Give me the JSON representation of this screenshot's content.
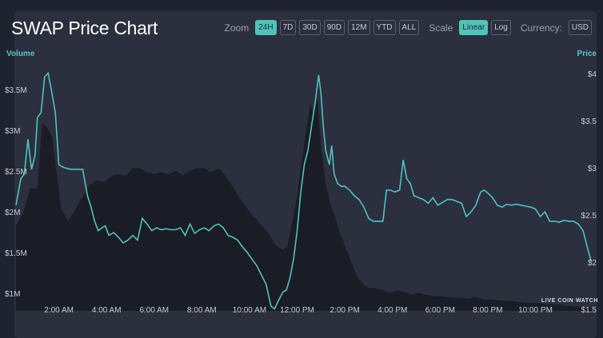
{
  "title": "SWAP Price Chart",
  "controls": {
    "zoom_label": "Zoom",
    "zoom_options": [
      "24H",
      "7D",
      "30D",
      "90D",
      "12M",
      "YTD",
      "ALL"
    ],
    "zoom_selected": "24H",
    "scale_label": "Scale",
    "scale_options": [
      "Linear",
      "Log"
    ],
    "scale_selected": "Linear",
    "currency_label": "Currency:",
    "currency_value": "USD"
  },
  "watermark": "LIVE COIN WATCH",
  "colors": {
    "price_line": "#4fc4b9",
    "volume_area": "#1a1c26",
    "panel": "#2b2f3e",
    "accent": "#4fc4b9"
  },
  "chart_data": {
    "type": "line",
    "title": "SWAP Price Chart",
    "x_unit": "hours",
    "x_ticks": [
      {
        "t": 2,
        "label": "2:00 AM"
      },
      {
        "t": 4,
        "label": "4:00 AM"
      },
      {
        "t": 6,
        "label": "6:00 AM"
      },
      {
        "t": 8,
        "label": "8:00 AM"
      },
      {
        "t": 10,
        "label": "10:00 AM"
      },
      {
        "t": 12,
        "label": "12:00 PM"
      },
      {
        "t": 14,
        "label": "2:00 PM"
      },
      {
        "t": 16,
        "label": "4:00 PM"
      },
      {
        "t": 18,
        "label": "6:00 PM"
      },
      {
        "t": 20,
        "label": "8:00 PM"
      },
      {
        "t": 22,
        "label": "10:00 PM"
      }
    ],
    "xlim": [
      0.2,
      24.5
    ],
    "price_axis": {
      "label": "Price",
      "ylim": [
        1.5,
        4.05
      ],
      "ticks": [
        {
          "v": 4,
          "label": "$4"
        },
        {
          "v": 3.5,
          "label": "$3.5"
        },
        {
          "v": 3,
          "label": "$3"
        },
        {
          "v": 2.5,
          "label": "$2.5"
        },
        {
          "v": 2,
          "label": "$2"
        },
        {
          "v": 1.5,
          "label": "$1.5"
        }
      ]
    },
    "volume_axis": {
      "label": "Volume",
      "ylim": [
        0.8,
        3.75
      ],
      "ticks": [
        {
          "v": 3.5,
          "label": "$3.5M"
        },
        {
          "v": 3,
          "label": "$3M"
        },
        {
          "v": 2.5,
          "label": "$2.5M"
        },
        {
          "v": 2,
          "label": "$2M"
        },
        {
          "v": 1.5,
          "label": "$1.5M"
        },
        {
          "v": 1,
          "label": "$1M"
        }
      ]
    },
    "series": [
      {
        "name": "Price",
        "points": [
          [
            0.2,
            2.62
          ],
          [
            0.4,
            2.9
          ],
          [
            0.55,
            2.95
          ],
          [
            0.7,
            3.32
          ],
          [
            0.85,
            3.0
          ],
          [
            1.0,
            3.15
          ],
          [
            1.1,
            3.55
          ],
          [
            1.25,
            3.6
          ],
          [
            1.4,
            3.98
          ],
          [
            1.55,
            4.02
          ],
          [
            1.7,
            3.82
          ],
          [
            1.85,
            3.6
          ],
          [
            2.0,
            3.05
          ],
          [
            2.2,
            3.02
          ],
          [
            2.5,
            3.0
          ],
          [
            2.8,
            3.0
          ],
          [
            3.0,
            3.0
          ],
          [
            3.2,
            2.72
          ],
          [
            3.35,
            2.6
          ],
          [
            3.5,
            2.45
          ],
          [
            3.65,
            2.35
          ],
          [
            3.8,
            2.38
          ],
          [
            3.95,
            2.4
          ],
          [
            4.1,
            2.3
          ],
          [
            4.3,
            2.33
          ],
          [
            4.5,
            2.28
          ],
          [
            4.7,
            2.22
          ],
          [
            4.9,
            2.25
          ],
          [
            5.1,
            2.3
          ],
          [
            5.3,
            2.25
          ],
          [
            5.5,
            2.48
          ],
          [
            5.7,
            2.42
          ],
          [
            5.9,
            2.35
          ],
          [
            6.1,
            2.38
          ],
          [
            6.3,
            2.36
          ],
          [
            6.5,
            2.37
          ],
          [
            6.7,
            2.36
          ],
          [
            6.9,
            2.36
          ],
          [
            7.1,
            2.38
          ],
          [
            7.3,
            2.3
          ],
          [
            7.5,
            2.42
          ],
          [
            7.7,
            2.32
          ],
          [
            7.9,
            2.36
          ],
          [
            8.1,
            2.38
          ],
          [
            8.3,
            2.35
          ],
          [
            8.5,
            2.4
          ],
          [
            8.7,
            2.42
          ],
          [
            8.9,
            2.38
          ],
          [
            9.1,
            2.3
          ],
          [
            9.3,
            2.28
          ],
          [
            9.5,
            2.25
          ],
          [
            9.7,
            2.18
          ],
          [
            9.9,
            2.12
          ],
          [
            10.1,
            2.05
          ],
          [
            10.3,
            1.98
          ],
          [
            10.5,
            1.88
          ],
          [
            10.7,
            1.78
          ],
          [
            10.9,
            1.55
          ],
          [
            11.05,
            1.52
          ],
          [
            11.2,
            1.6
          ],
          [
            11.4,
            1.7
          ],
          [
            11.55,
            1.72
          ],
          [
            11.7,
            1.85
          ],
          [
            11.85,
            2.05
          ],
          [
            12.0,
            2.35
          ],
          [
            12.15,
            2.75
          ],
          [
            12.3,
            3.05
          ],
          [
            12.45,
            3.2
          ],
          [
            12.6,
            3.45
          ],
          [
            12.75,
            3.7
          ],
          [
            12.9,
            4.0
          ],
          [
            13.0,
            3.8
          ],
          [
            13.1,
            3.45
          ],
          [
            13.2,
            3.2
          ],
          [
            13.35,
            3.05
          ],
          [
            13.45,
            3.25
          ],
          [
            13.55,
            2.95
          ],
          [
            13.7,
            2.85
          ],
          [
            13.85,
            2.82
          ],
          [
            14.0,
            2.82
          ],
          [
            14.2,
            2.78
          ],
          [
            14.4,
            2.72
          ],
          [
            14.6,
            2.68
          ],
          [
            14.8,
            2.6
          ],
          [
            15.0,
            2.48
          ],
          [
            15.2,
            2.45
          ],
          [
            15.4,
            2.45
          ],
          [
            15.6,
            2.45
          ],
          [
            15.75,
            2.78
          ],
          [
            15.9,
            2.78
          ],
          [
            16.1,
            2.76
          ],
          [
            16.3,
            2.78
          ],
          [
            16.45,
            3.1
          ],
          [
            16.6,
            2.9
          ],
          [
            16.75,
            2.85
          ],
          [
            16.9,
            2.72
          ],
          [
            17.1,
            2.7
          ],
          [
            17.3,
            2.68
          ],
          [
            17.5,
            2.64
          ],
          [
            17.7,
            2.7
          ],
          [
            17.9,
            2.62
          ],
          [
            18.1,
            2.65
          ],
          [
            18.3,
            2.68
          ],
          [
            18.5,
            2.68
          ],
          [
            18.7,
            2.66
          ],
          [
            18.9,
            2.64
          ],
          [
            19.1,
            2.5
          ],
          [
            19.3,
            2.55
          ],
          [
            19.5,
            2.62
          ],
          [
            19.7,
            2.76
          ],
          [
            19.85,
            2.78
          ],
          [
            20.0,
            2.75
          ],
          [
            20.2,
            2.7
          ],
          [
            20.4,
            2.62
          ],
          [
            20.6,
            2.6
          ],
          [
            20.8,
            2.63
          ],
          [
            21.0,
            2.62
          ],
          [
            21.2,
            2.63
          ],
          [
            21.4,
            2.62
          ],
          [
            21.6,
            2.61
          ],
          [
            21.8,
            2.6
          ],
          [
            22.0,
            2.58
          ],
          [
            22.2,
            2.5
          ],
          [
            22.4,
            2.55
          ],
          [
            22.6,
            2.45
          ],
          [
            22.8,
            2.45
          ],
          [
            23.0,
            2.44
          ],
          [
            23.2,
            2.46
          ],
          [
            23.4,
            2.45
          ],
          [
            23.6,
            2.45
          ],
          [
            23.8,
            2.42
          ],
          [
            24.0,
            2.35
          ],
          [
            24.2,
            2.15
          ],
          [
            24.35,
            2.02
          ]
        ]
      },
      {
        "name": "Volume",
        "points": [
          [
            0.2,
            1.85
          ],
          [
            0.5,
            2.0
          ],
          [
            0.8,
            2.3
          ],
          [
            1.1,
            2.3
          ],
          [
            1.3,
            3.1
          ],
          [
            1.5,
            3.05
          ],
          [
            1.7,
            2.95
          ],
          [
            1.9,
            2.5
          ],
          [
            2.1,
            2.05
          ],
          [
            2.4,
            1.9
          ],
          [
            2.7,
            2.05
          ],
          [
            3.0,
            2.2
          ],
          [
            3.3,
            2.35
          ],
          [
            3.6,
            2.4
          ],
          [
            3.9,
            2.38
          ],
          [
            4.2,
            2.45
          ],
          [
            4.5,
            2.48
          ],
          [
            4.8,
            2.45
          ],
          [
            5.1,
            2.55
          ],
          [
            5.4,
            2.55
          ],
          [
            5.7,
            2.5
          ],
          [
            6.0,
            2.48
          ],
          [
            6.3,
            2.5
          ],
          [
            6.6,
            2.47
          ],
          [
            6.9,
            2.52
          ],
          [
            7.2,
            2.46
          ],
          [
            7.5,
            2.52
          ],
          [
            7.8,
            2.55
          ],
          [
            8.1,
            2.55
          ],
          [
            8.4,
            2.5
          ],
          [
            8.7,
            2.55
          ],
          [
            9.0,
            2.45
          ],
          [
            9.3,
            2.32
          ],
          [
            9.6,
            2.18
          ],
          [
            9.9,
            2.05
          ],
          [
            10.2,
            1.95
          ],
          [
            10.5,
            1.85
          ],
          [
            10.8,
            1.75
          ],
          [
            11.1,
            1.6
          ],
          [
            11.4,
            1.55
          ],
          [
            11.6,
            1.6
          ],
          [
            11.8,
            1.9
          ],
          [
            12.0,
            2.2
          ],
          [
            12.2,
            2.65
          ],
          [
            12.4,
            3.05
          ],
          [
            12.55,
            3.35
          ],
          [
            12.7,
            3.2
          ],
          [
            12.85,
            3.4
          ],
          [
            13.0,
            2.8
          ],
          [
            13.2,
            2.35
          ],
          [
            13.4,
            2.1
          ],
          [
            13.6,
            1.95
          ],
          [
            13.8,
            1.75
          ],
          [
            14.0,
            1.6
          ],
          [
            14.2,
            1.45
          ],
          [
            14.4,
            1.3
          ],
          [
            14.6,
            1.18
          ],
          [
            14.8,
            1.12
          ],
          [
            15.0,
            1.08
          ],
          [
            15.3,
            1.08
          ],
          [
            15.6,
            1.05
          ],
          [
            15.9,
            1.02
          ],
          [
            16.2,
            1.05
          ],
          [
            16.5,
            1.03
          ],
          [
            16.8,
            1.0
          ],
          [
            17.1,
            1.02
          ],
          [
            17.4,
            1.0
          ],
          [
            17.7,
            0.98
          ],
          [
            18.0,
            0.98
          ],
          [
            18.3,
            0.97
          ],
          [
            18.6,
            0.96
          ],
          [
            18.9,
            0.96
          ],
          [
            19.2,
            0.95
          ],
          [
            19.5,
            0.97
          ],
          [
            19.8,
            0.94
          ],
          [
            20.1,
            0.94
          ],
          [
            20.4,
            0.93
          ],
          [
            20.7,
            0.92
          ],
          [
            21.0,
            0.92
          ],
          [
            21.3,
            0.91
          ],
          [
            21.6,
            0.9
          ],
          [
            21.9,
            0.9
          ],
          [
            22.2,
            0.89
          ],
          [
            22.5,
            0.88
          ],
          [
            22.8,
            0.88
          ],
          [
            23.1,
            0.87
          ],
          [
            23.4,
            0.86
          ],
          [
            23.7,
            0.85
          ],
          [
            24.0,
            0.85
          ],
          [
            24.35,
            0.84
          ]
        ]
      }
    ]
  }
}
